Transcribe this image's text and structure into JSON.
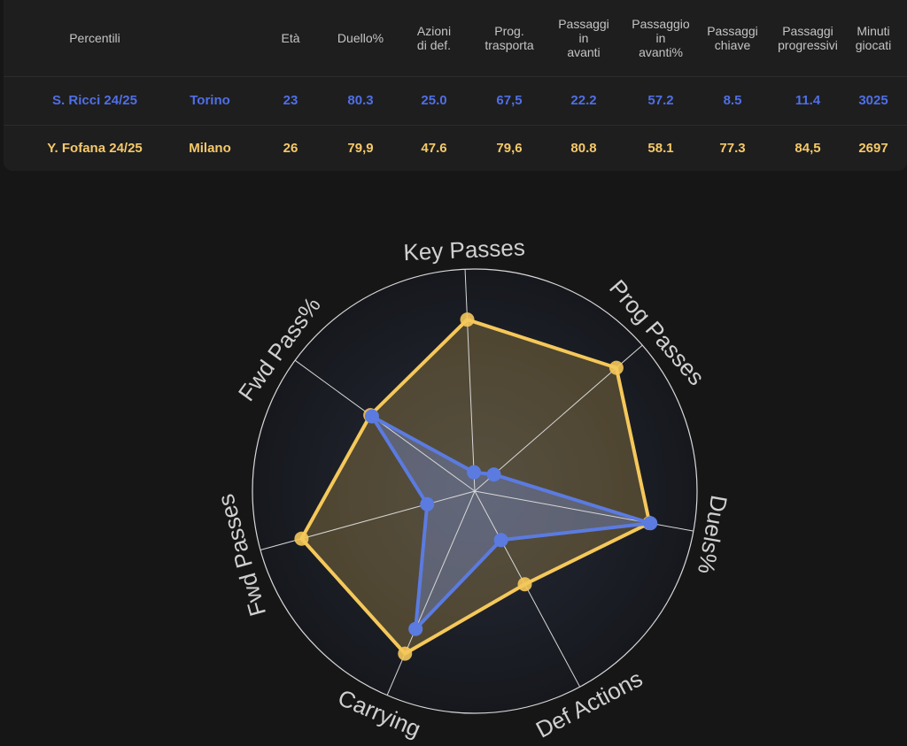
{
  "table": {
    "headers": [
      "Percentili",
      "",
      "Età",
      "Duello%",
      "Azioni\ndi def.",
      "Prog.\ntrasporta",
      "Passaggi\nin\navanti",
      "Passaggio\nin\navanti%",
      "Passaggi\nchiave",
      "Passaggi\nprogressivi",
      "Minuti\ngiocati"
    ],
    "rows": [
      [
        "S. Ricci 24/25",
        "Torino",
        "23",
        "80.3",
        "25.0",
        "67,5",
        "22.2",
        "57.2",
        "8.5",
        "11.4",
        "3025"
      ],
      [
        "Y. Fofana 24/25",
        "Milano",
        "26",
        "79,9",
        "47.6",
        "79,6",
        "80.8",
        "58.1",
        "77.3",
        "84,5",
        "2697"
      ]
    ]
  },
  "chart_data": {
    "type": "radar",
    "axes": [
      "Key Passes",
      "Prog Passes",
      "Duels%",
      "Def Actions",
      "Carrying",
      "Fwd Passes",
      "Fwd Pass%"
    ],
    "range": [
      0,
      100
    ],
    "series": [
      {
        "name": "Y. Fofana 24/25",
        "color": "#f5c85a",
        "values": [
          77.3,
          84.5,
          79.9,
          47.6,
          79.6,
          80.8,
          58.1
        ]
      },
      {
        "name": "S. Ricci 24/25",
        "color": "#5b7be0",
        "values": [
          8.5,
          11.4,
          80.3,
          25.0,
          67.5,
          22.2,
          57.2
        ]
      }
    ]
  }
}
